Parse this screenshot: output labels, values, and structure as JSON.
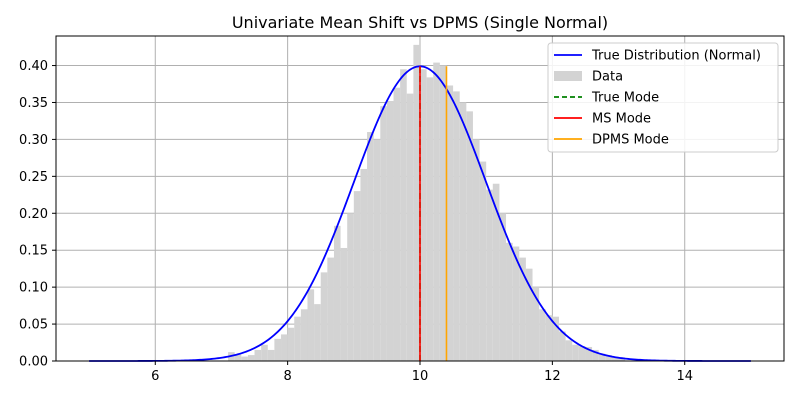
{
  "chart_data": {
    "type": "line",
    "title": "Univariate Mean Shift vs DPMS (Single Normal)",
    "xlabel": "",
    "ylabel": "",
    "xlim": [
      4.5,
      15.5
    ],
    "ylim": [
      0,
      0.44
    ],
    "xticks": [
      6,
      8,
      10,
      12,
      14
    ],
    "xtick_labels": [
      "6",
      "8",
      "10",
      "12",
      "14"
    ],
    "yticks": [
      0.0,
      0.05,
      0.1,
      0.15,
      0.2,
      0.25,
      0.3,
      0.35,
      0.4
    ],
    "ytick_labels": [
      "0.00",
      "0.05",
      "0.10",
      "0.15",
      "0.20",
      "0.25",
      "0.30",
      "0.35",
      "0.40"
    ],
    "grid": true,
    "legend_position": "top-right",
    "series": [
      {
        "name": "True Distribution (Normal)",
        "kind": "pdf-line",
        "color": "#0000ff",
        "mean": 10,
        "std": 1,
        "x_range": [
          5,
          15
        ]
      },
      {
        "name": "Data",
        "kind": "histogram",
        "color": "#d3d3d3",
        "bin_width": 0.1,
        "bins": [
          [
            7.1,
            0.012
          ],
          [
            7.2,
            0.009
          ],
          [
            7.3,
            0.006
          ],
          [
            7.4,
            0.008
          ],
          [
            7.5,
            0.015
          ],
          [
            7.6,
            0.022
          ],
          [
            7.7,
            0.015
          ],
          [
            7.8,
            0.03
          ],
          [
            7.9,
            0.036
          ],
          [
            8.0,
            0.045
          ],
          [
            8.1,
            0.06
          ],
          [
            8.2,
            0.07
          ],
          [
            8.3,
            0.097
          ],
          [
            8.4,
            0.077
          ],
          [
            8.5,
            0.12
          ],
          [
            8.6,
            0.14
          ],
          [
            8.7,
            0.183
          ],
          [
            8.8,
            0.153
          ],
          [
            8.9,
            0.2
          ],
          [
            9.0,
            0.23
          ],
          [
            9.1,
            0.26
          ],
          [
            9.2,
            0.31
          ],
          [
            9.3,
            0.3
          ],
          [
            9.4,
            0.345
          ],
          [
            9.5,
            0.352
          ],
          [
            9.6,
            0.37
          ],
          [
            9.7,
            0.395
          ],
          [
            9.8,
            0.362
          ],
          [
            9.9,
            0.428
          ],
          [
            10.0,
            0.395
          ],
          [
            10.1,
            0.384
          ],
          [
            10.2,
            0.404
          ],
          [
            10.3,
            0.4
          ],
          [
            10.4,
            0.373
          ],
          [
            10.5,
            0.365
          ],
          [
            10.6,
            0.35
          ],
          [
            10.7,
            0.338
          ],
          [
            10.8,
            0.3
          ],
          [
            10.9,
            0.27
          ],
          [
            11.0,
            0.232
          ],
          [
            11.1,
            0.24
          ],
          [
            11.2,
            0.2
          ],
          [
            11.3,
            0.16
          ],
          [
            11.4,
            0.155
          ],
          [
            11.5,
            0.14
          ],
          [
            11.6,
            0.125
          ],
          [
            11.7,
            0.1
          ],
          [
            11.8,
            0.07
          ],
          [
            11.9,
            0.062
          ],
          [
            12.0,
            0.06
          ],
          [
            12.1,
            0.04
          ],
          [
            12.2,
            0.028
          ],
          [
            12.3,
            0.022
          ],
          [
            12.4,
            0.02
          ],
          [
            12.5,
            0.019
          ],
          [
            12.6,
            0.015
          ],
          [
            12.7,
            0.01
          ],
          [
            12.8,
            0.008
          ],
          [
            12.9,
            0.006
          ],
          [
            13.0,
            0.005
          ]
        ]
      },
      {
        "name": "True Mode",
        "kind": "vline",
        "color": "#008000",
        "dashed": true,
        "x": 10.0,
        "y_range": [
          0,
          0.399
        ]
      },
      {
        "name": "MS Mode",
        "kind": "vline",
        "color": "#ff0000",
        "dashed": false,
        "x": 10.0,
        "y_range": [
          0,
          0.399
        ]
      },
      {
        "name": "DPMS Mode",
        "kind": "vline",
        "color": "#ffa500",
        "dashed": false,
        "x": 10.4,
        "y_range": [
          0,
          0.399
        ]
      }
    ]
  }
}
